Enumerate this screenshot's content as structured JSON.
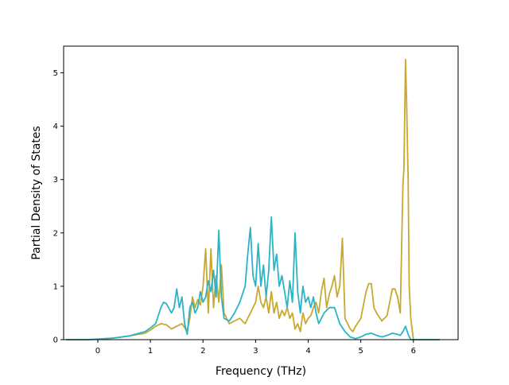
{
  "chart_data": {
    "type": "line",
    "title": "",
    "xlabel": "Frequency (THz)",
    "ylabel": "Partial Density of States",
    "xlim": [
      -0.65,
      6.85
    ],
    "ylim": [
      0,
      5.5
    ],
    "xticks": [
      0,
      1,
      2,
      3,
      4,
      5,
      6
    ],
    "yticks": [
      0,
      1,
      2,
      3,
      4,
      5
    ],
    "grid": false,
    "legend": "none",
    "series": [
      {
        "color": "#c8a82f",
        "x": [
          -0.6,
          -0.2,
          0.0,
          0.3,
          0.6,
          0.9,
          1.0,
          1.1,
          1.2,
          1.3,
          1.4,
          1.5,
          1.6,
          1.7,
          1.75,
          1.8,
          1.85,
          1.9,
          1.95,
          2.0,
          2.05,
          2.1,
          2.15,
          2.2,
          2.25,
          2.3,
          2.35,
          2.4,
          2.5,
          2.6,
          2.7,
          2.8,
          2.9,
          3.0,
          3.05,
          3.1,
          3.15,
          3.2,
          3.25,
          3.3,
          3.35,
          3.4,
          3.45,
          3.5,
          3.55,
          3.6,
          3.65,
          3.7,
          3.75,
          3.8,
          3.85,
          3.9,
          3.95,
          4.0,
          4.05,
          4.1,
          4.15,
          4.2,
          4.25,
          4.3,
          4.35,
          4.4,
          4.45,
          4.5,
          4.55,
          4.6,
          4.65,
          4.7,
          4.75,
          4.8,
          4.85,
          4.9,
          5.0,
          5.1,
          5.15,
          5.2,
          5.25,
          5.3,
          5.4,
          5.5,
          5.55,
          5.6,
          5.65,
          5.7,
          5.75,
          5.8,
          5.82,
          5.85,
          5.87,
          5.9,
          5.92,
          5.95,
          6.0,
          6.5
        ],
        "y": [
          0.0,
          0.0,
          0.01,
          0.03,
          0.07,
          0.12,
          0.18,
          0.25,
          0.3,
          0.28,
          0.2,
          0.25,
          0.3,
          0.15,
          0.4,
          0.8,
          0.6,
          0.75,
          0.65,
          1.0,
          1.7,
          0.5,
          1.7,
          0.6,
          1.2,
          0.7,
          1.4,
          0.5,
          0.3,
          0.35,
          0.4,
          0.3,
          0.5,
          0.7,
          1.0,
          0.7,
          0.6,
          0.8,
          0.5,
          0.9,
          0.5,
          0.7,
          0.4,
          0.55,
          0.45,
          0.6,
          0.4,
          0.5,
          0.2,
          0.3,
          0.15,
          0.5,
          0.3,
          0.4,
          0.45,
          0.6,
          0.7,
          0.5,
          0.9,
          1.15,
          0.6,
          0.85,
          1.0,
          1.2,
          0.8,
          1.0,
          1.9,
          0.4,
          0.3,
          0.2,
          0.15,
          0.25,
          0.4,
          0.9,
          1.05,
          1.05,
          0.6,
          0.5,
          0.35,
          0.45,
          0.7,
          0.95,
          0.95,
          0.8,
          0.5,
          2.9,
          3.2,
          5.25,
          4.5,
          3.0,
          1.0,
          0.4,
          0.0,
          0.0
        ]
      },
      {
        "color": "#2ab4c6",
        "x": [
          -0.6,
          -0.2,
          0.0,
          0.3,
          0.6,
          0.9,
          1.0,
          1.1,
          1.2,
          1.25,
          1.3,
          1.4,
          1.45,
          1.5,
          1.55,
          1.6,
          1.65,
          1.7,
          1.75,
          1.8,
          1.85,
          1.9,
          1.95,
          2.0,
          2.05,
          2.1,
          2.15,
          2.2,
          2.25,
          2.3,
          2.35,
          2.4,
          2.5,
          2.6,
          2.7,
          2.8,
          2.85,
          2.9,
          2.95,
          3.0,
          3.05,
          3.1,
          3.15,
          3.2,
          3.25,
          3.3,
          3.35,
          3.4,
          3.45,
          3.5,
          3.55,
          3.6,
          3.65,
          3.7,
          3.75,
          3.8,
          3.85,
          3.9,
          3.95,
          4.0,
          4.05,
          4.1,
          4.15,
          4.2,
          4.3,
          4.4,
          4.5,
          4.6,
          4.7,
          4.8,
          4.9,
          5.0,
          5.1,
          5.2,
          5.3,
          5.4,
          5.5,
          5.6,
          5.7,
          5.75,
          5.8,
          5.85,
          5.9,
          5.95,
          6.5
        ],
        "y": [
          0.0,
          0.0,
          0.01,
          0.03,
          0.07,
          0.15,
          0.22,
          0.3,
          0.6,
          0.7,
          0.68,
          0.5,
          0.6,
          0.95,
          0.6,
          0.8,
          0.3,
          0.1,
          0.6,
          0.7,
          0.5,
          0.6,
          0.9,
          0.7,
          0.8,
          1.1,
          0.9,
          1.3,
          0.8,
          2.05,
          0.8,
          0.4,
          0.35,
          0.5,
          0.7,
          1.0,
          1.6,
          2.1,
          1.2,
          1.0,
          1.8,
          1.0,
          1.4,
          0.8,
          1.3,
          2.3,
          1.3,
          1.6,
          1.0,
          1.2,
          0.9,
          0.6,
          1.1,
          0.7,
          2.0,
          0.9,
          0.5,
          1.0,
          0.7,
          0.8,
          0.6,
          0.8,
          0.5,
          0.3,
          0.5,
          0.6,
          0.6,
          0.3,
          0.15,
          0.05,
          0.02,
          0.05,
          0.1,
          0.12,
          0.08,
          0.05,
          0.08,
          0.12,
          0.1,
          0.08,
          0.15,
          0.25,
          0.1,
          0.0,
          0.0
        ]
      }
    ]
  }
}
